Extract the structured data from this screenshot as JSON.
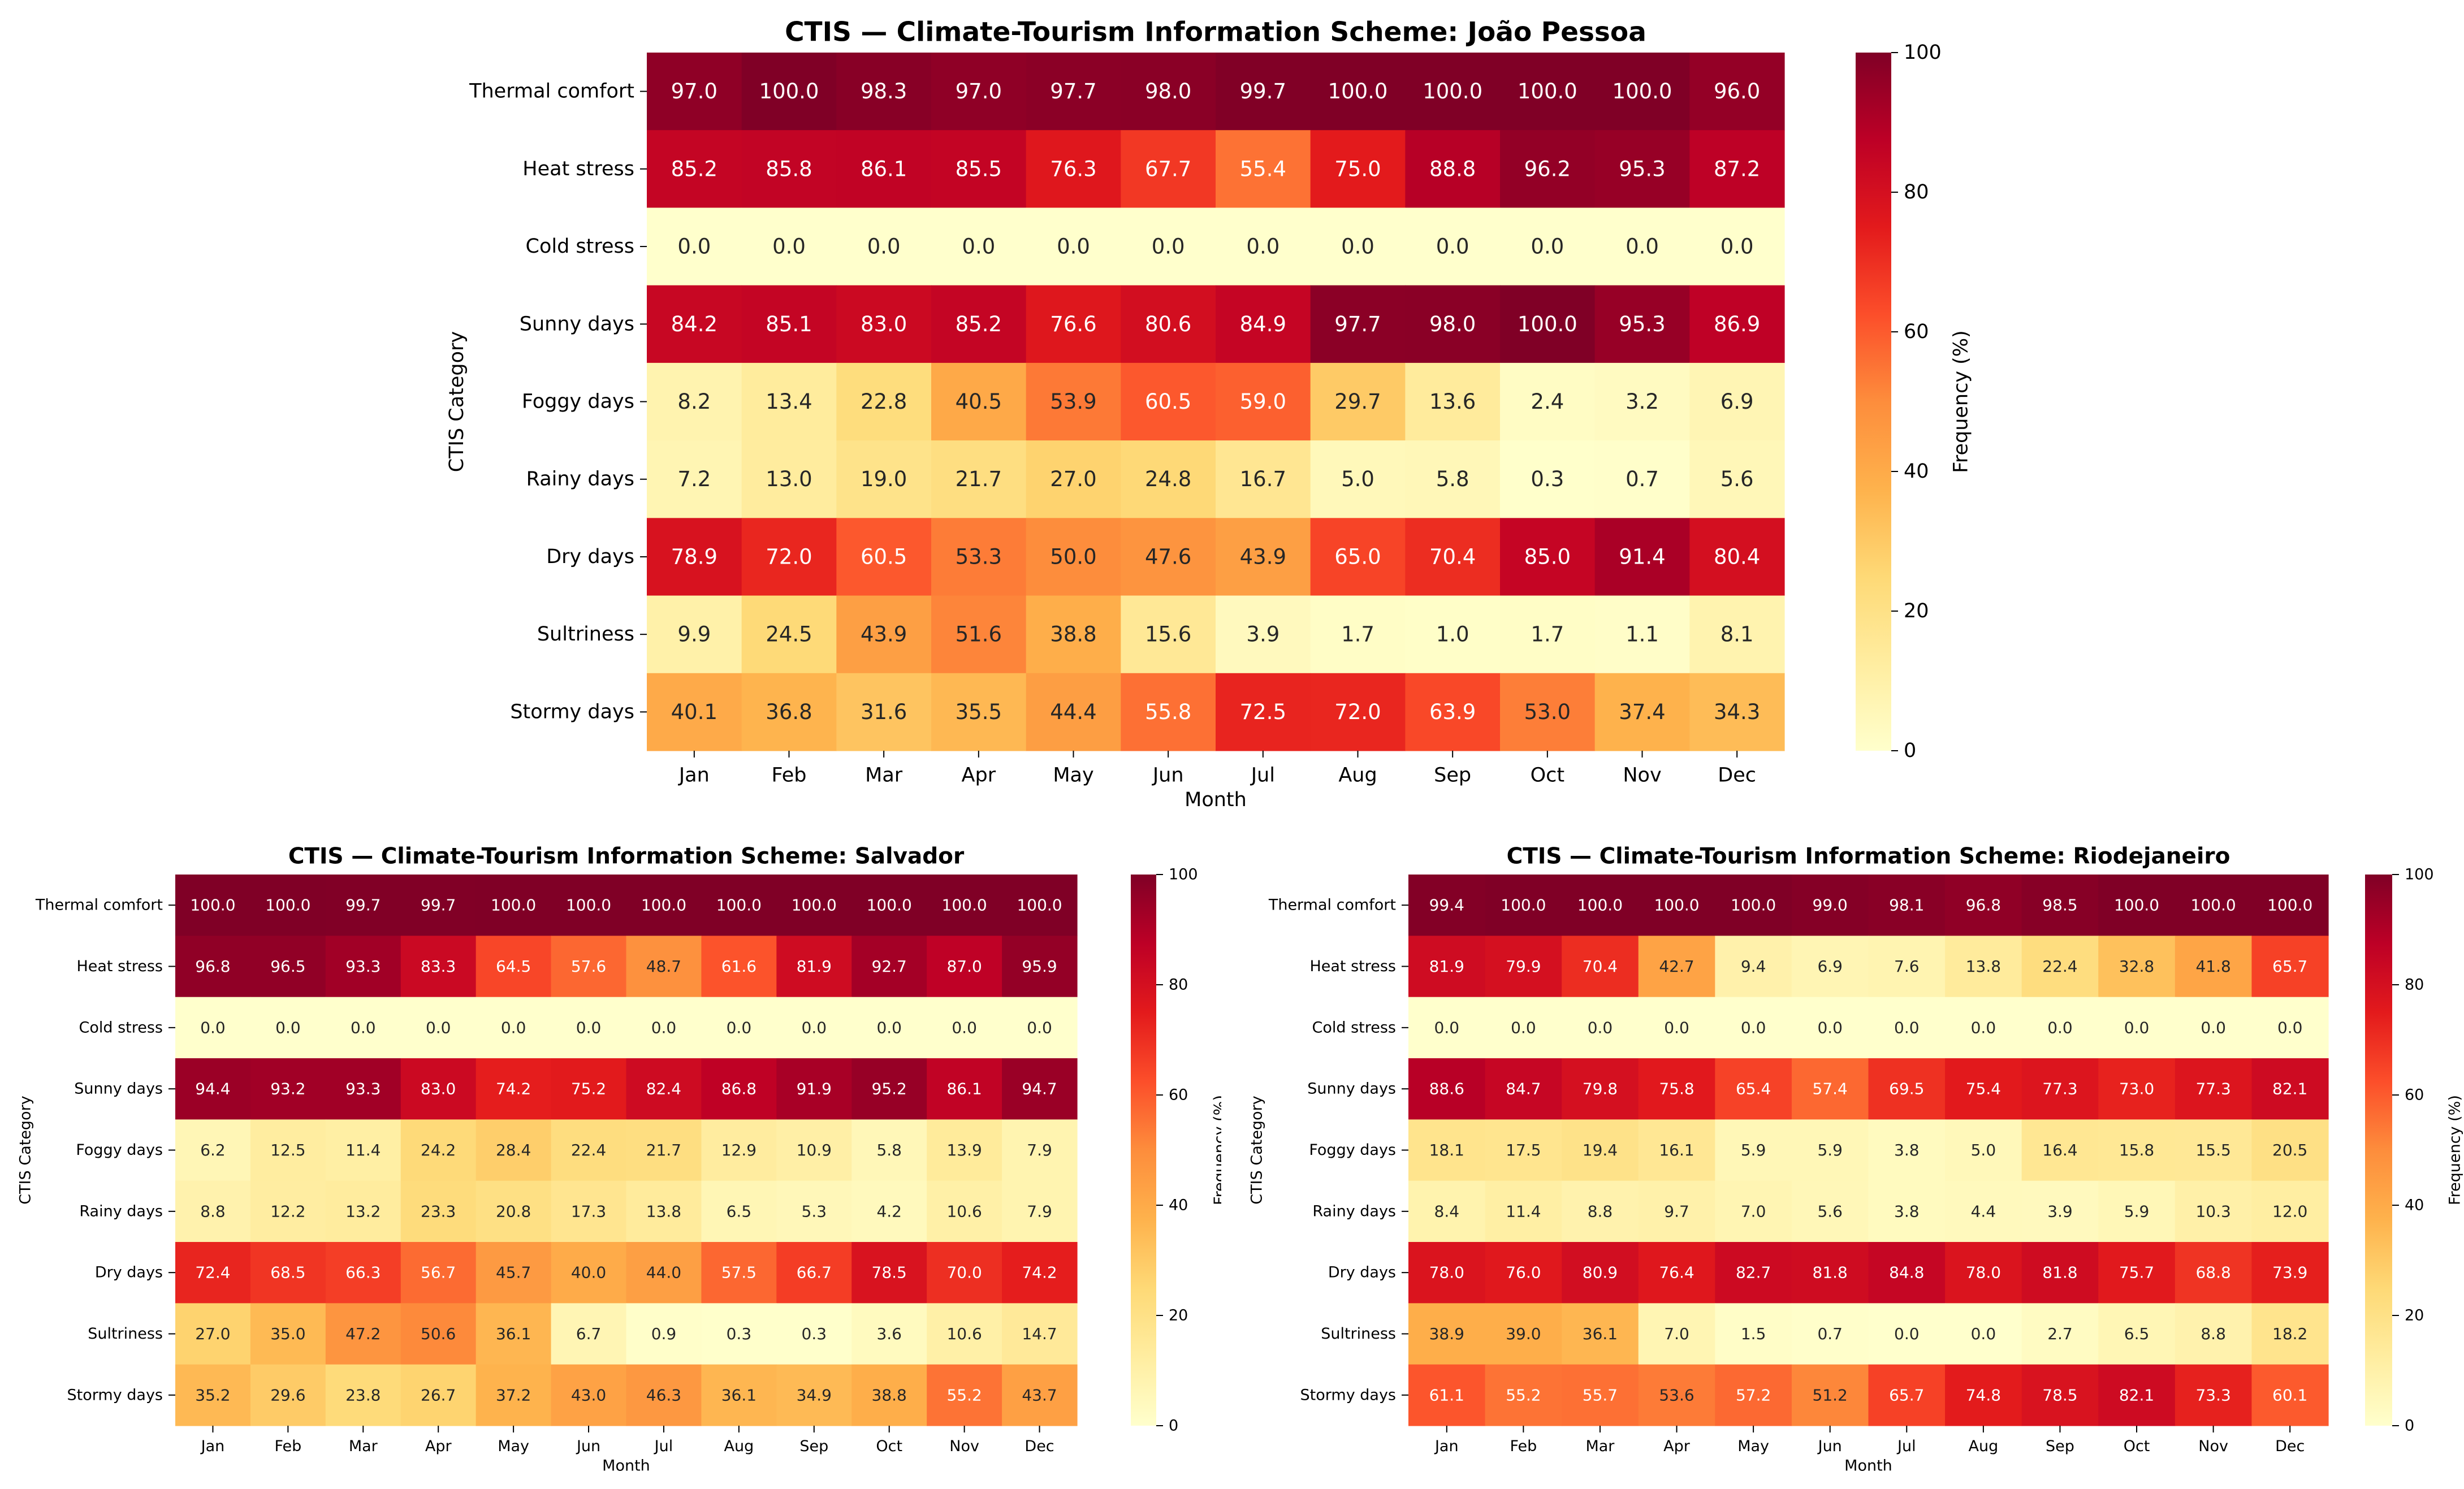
{
  "chart_data": [
    {
      "type": "heatmap",
      "title": "CTIS — Climate-Tourism Information Scheme: João Pessoa",
      "xlabel": "Month",
      "ylabel": "CTIS Category",
      "colorbar_label": "Frequency (%)",
      "colorbar_range": [
        0,
        100
      ],
      "colorbar_ticks": [
        "0",
        "20",
        "40",
        "60",
        "80",
        "100"
      ],
      "colormap": "YlOrRd",
      "columns": [
        "Jan",
        "Feb",
        "Mar",
        "Apr",
        "May",
        "Jun",
        "Jul",
        "Aug",
        "Sep",
        "Oct",
        "Nov",
        "Dec"
      ],
      "rows": [
        "Thermal comfort",
        "Heat stress",
        "Cold stress",
        "Sunny days",
        "Foggy days",
        "Rainy days",
        "Dry days",
        "Sultriness",
        "Stormy days"
      ],
      "values": [
        [
          97.0,
          100.0,
          98.3,
          97.0,
          97.7,
          98.0,
          99.7,
          100.0,
          100.0,
          100.0,
          100.0,
          96.0
        ],
        [
          85.2,
          85.8,
          86.1,
          85.5,
          76.3,
          67.7,
          55.4,
          75.0,
          88.8,
          96.2,
          95.3,
          87.2
        ],
        [
          0.0,
          0.0,
          0.0,
          0.0,
          0.0,
          0.0,
          0.0,
          0.0,
          0.0,
          0.0,
          0.0,
          0.0
        ],
        [
          84.2,
          85.1,
          83.0,
          85.2,
          76.6,
          80.6,
          84.9,
          97.7,
          98.0,
          100.0,
          95.3,
          86.9
        ],
        [
          8.2,
          13.4,
          22.8,
          40.5,
          53.9,
          60.5,
          59.0,
          29.7,
          13.6,
          2.4,
          3.2,
          6.9
        ],
        [
          7.2,
          13.0,
          19.0,
          21.7,
          27.0,
          24.8,
          16.7,
          5.0,
          5.8,
          0.3,
          0.7,
          5.6
        ],
        [
          78.9,
          72.0,
          60.5,
          53.3,
          50.0,
          47.6,
          43.9,
          65.0,
          70.4,
          85.0,
          91.4,
          80.4
        ],
        [
          9.9,
          24.5,
          43.9,
          51.6,
          38.8,
          15.6,
          3.9,
          1.7,
          1.0,
          1.7,
          1.1,
          8.1
        ],
        [
          40.1,
          36.8,
          31.6,
          35.5,
          44.4,
          55.8,
          72.5,
          72.0,
          63.9,
          53.0,
          37.4,
          34.3
        ]
      ]
    },
    {
      "type": "heatmap",
      "title": "CTIS — Climate-Tourism Information Scheme: Salvador",
      "xlabel": "Month",
      "ylabel": "CTIS Category",
      "colorbar_label": "Frequency (%)",
      "colorbar_range": [
        0,
        100
      ],
      "colorbar_ticks": [
        "0",
        "20",
        "40",
        "60",
        "80",
        "100"
      ],
      "colormap": "YlOrRd",
      "columns": [
        "Jan",
        "Feb",
        "Mar",
        "Apr",
        "May",
        "Jun",
        "Jul",
        "Aug",
        "Sep",
        "Oct",
        "Nov",
        "Dec"
      ],
      "rows": [
        "Thermal comfort",
        "Heat stress",
        "Cold stress",
        "Sunny days",
        "Foggy days",
        "Rainy days",
        "Dry days",
        "Sultriness",
        "Stormy days"
      ],
      "values": [
        [
          100.0,
          100.0,
          99.7,
          99.7,
          100.0,
          100.0,
          100.0,
          100.0,
          100.0,
          100.0,
          100.0,
          100.0
        ],
        [
          96.8,
          96.5,
          93.3,
          83.3,
          64.5,
          57.6,
          48.7,
          61.6,
          81.9,
          92.7,
          87.0,
          95.9
        ],
        [
          0.0,
          0.0,
          0.0,
          0.0,
          0.0,
          0.0,
          0.0,
          0.0,
          0.0,
          0.0,
          0.0,
          0.0
        ],
        [
          94.4,
          93.2,
          93.3,
          83.0,
          74.2,
          75.2,
          82.4,
          86.8,
          91.9,
          95.2,
          86.1,
          94.7
        ],
        [
          6.2,
          12.5,
          11.4,
          24.2,
          28.4,
          22.4,
          21.7,
          12.9,
          10.9,
          5.8,
          13.9,
          7.9
        ],
        [
          8.8,
          12.2,
          13.2,
          23.3,
          20.8,
          17.3,
          13.8,
          6.5,
          5.3,
          4.2,
          10.6,
          7.9
        ],
        [
          72.4,
          68.5,
          66.3,
          56.7,
          45.7,
          40.0,
          44.0,
          57.5,
          66.7,
          78.5,
          70.0,
          74.2
        ],
        [
          27.0,
          35.0,
          47.2,
          50.6,
          36.1,
          6.7,
          0.9,
          0.3,
          0.3,
          3.6,
          10.6,
          14.7
        ],
        [
          35.2,
          29.6,
          23.8,
          26.7,
          37.2,
          43.0,
          46.3,
          36.1,
          34.9,
          38.8,
          55.2,
          43.7
        ]
      ]
    },
    {
      "type": "heatmap",
      "title": "CTIS — Climate-Tourism Information Scheme: Riodejaneiro",
      "xlabel": "Month",
      "ylabel": "CTIS Category",
      "colorbar_label": "Frequency (%)",
      "colorbar_range": [
        0,
        100
      ],
      "colorbar_ticks": [
        "0",
        "20",
        "40",
        "60",
        "80",
        "100"
      ],
      "colormap": "YlOrRd",
      "columns": [
        "Jan",
        "Feb",
        "Mar",
        "Apr",
        "May",
        "Jun",
        "Jul",
        "Aug",
        "Sep",
        "Oct",
        "Nov",
        "Dec"
      ],
      "rows": [
        "Thermal comfort",
        "Heat stress",
        "Cold stress",
        "Sunny days",
        "Foggy days",
        "Rainy days",
        "Dry days",
        "Sultriness",
        "Stormy days"
      ],
      "values": [
        [
          99.4,
          100.0,
          100.0,
          100.0,
          100.0,
          99.0,
          98.1,
          96.8,
          98.5,
          100.0,
          100.0,
          100.0
        ],
        [
          81.9,
          79.9,
          70.4,
          42.7,
          9.4,
          6.9,
          7.6,
          13.8,
          22.4,
          32.8,
          41.8,
          65.7
        ],
        [
          0.0,
          0.0,
          0.0,
          0.0,
          0.0,
          0.0,
          0.0,
          0.0,
          0.0,
          0.0,
          0.0,
          0.0
        ],
        [
          88.6,
          84.7,
          79.8,
          75.8,
          65.4,
          57.4,
          69.5,
          75.4,
          77.3,
          73.0,
          77.3,
          82.1
        ],
        [
          18.1,
          17.5,
          19.4,
          16.1,
          5.9,
          5.9,
          3.8,
          5.0,
          16.4,
          15.8,
          15.5,
          20.5
        ],
        [
          8.4,
          11.4,
          8.8,
          9.7,
          7.0,
          5.6,
          3.8,
          4.4,
          3.9,
          5.9,
          10.3,
          12.0
        ],
        [
          78.0,
          76.0,
          80.9,
          76.4,
          82.7,
          81.8,
          84.8,
          78.0,
          81.8,
          75.7,
          68.8,
          73.9
        ],
        [
          38.9,
          39.0,
          36.1,
          7.0,
          1.5,
          0.7,
          0.0,
          0.0,
          2.7,
          6.5,
          8.8,
          18.2
        ],
        [
          61.1,
          55.2,
          55.7,
          53.6,
          57.2,
          51.2,
          65.7,
          74.8,
          78.5,
          82.1,
          73.3,
          60.1
        ]
      ]
    }
  ]
}
